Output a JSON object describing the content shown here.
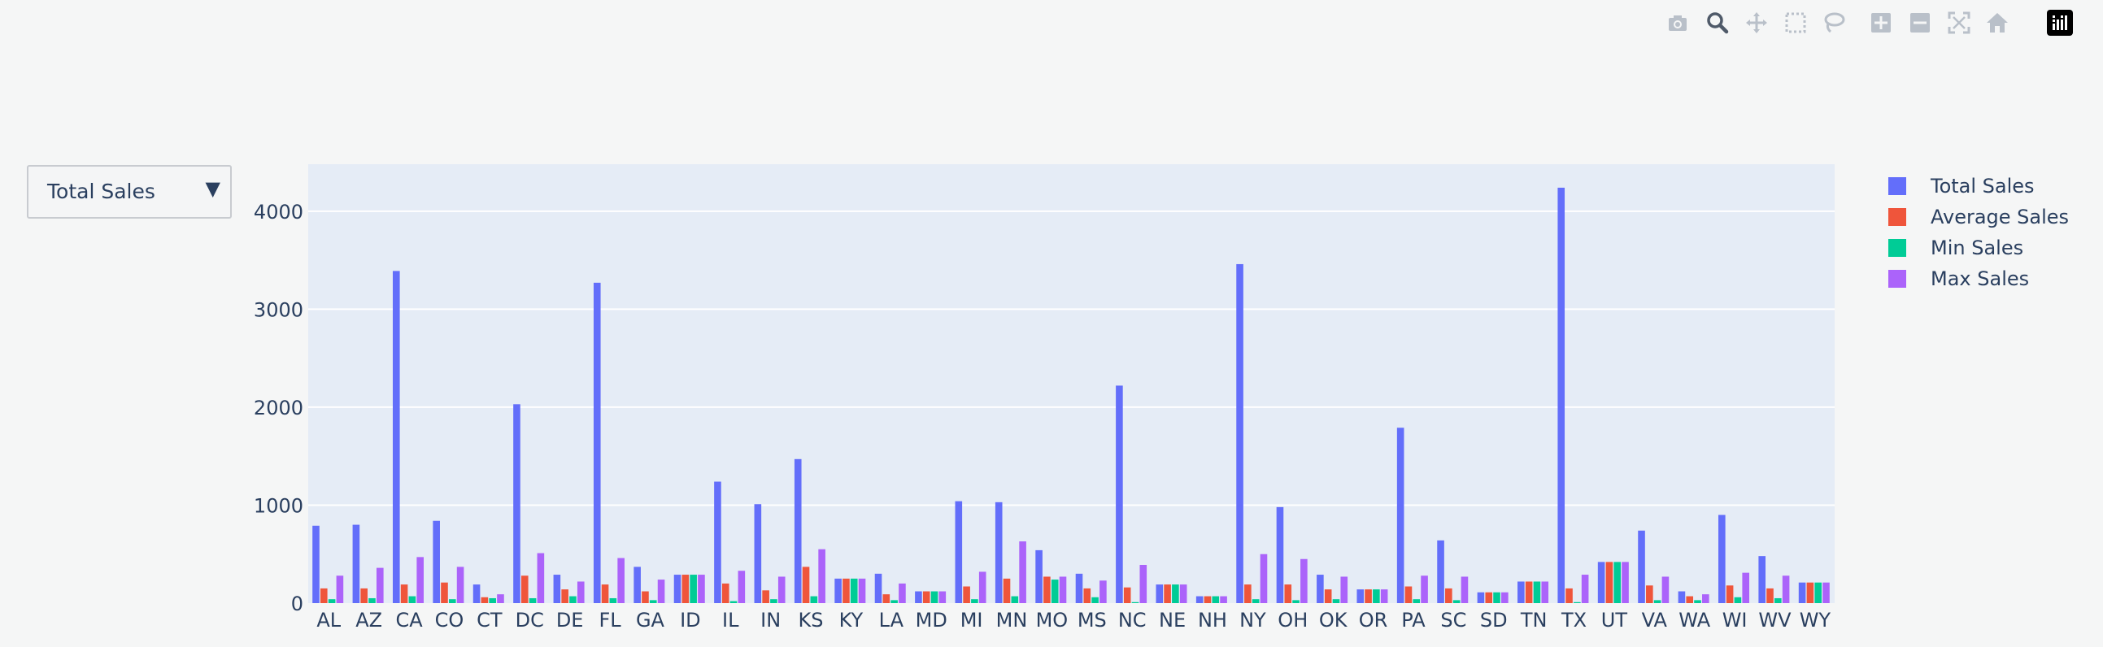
{
  "modebar": {
    "buttons": [
      {
        "name": "camera-icon"
      },
      {
        "name": "zoom-icon"
      },
      {
        "name": "pan-icon"
      },
      {
        "name": "box-select-icon"
      },
      {
        "name": "lasso-icon"
      },
      {
        "name": "zoom-in-icon"
      },
      {
        "name": "zoom-out-icon"
      },
      {
        "name": "autoscale-icon"
      },
      {
        "name": "home-icon"
      },
      {
        "name": "plotly-logo-icon"
      }
    ]
  },
  "dropdown": {
    "selected": "Total Sales",
    "arrow": "▼"
  },
  "colors": {
    "plot_bg": "#e5ecf6",
    "grid": "#ffffff",
    "text": "#2a3f5f",
    "total": "#636efa",
    "average": "#ef553b",
    "min": "#00cc96",
    "max": "#ab63fa"
  },
  "chart_data": {
    "type": "bar",
    "ylim": [
      0,
      4480
    ],
    "yticks": [
      0,
      1000,
      2000,
      3000,
      4000
    ],
    "grid": true,
    "legend_position": "top-right",
    "categories": [
      "AL",
      "AZ",
      "CA",
      "CO",
      "CT",
      "DC",
      "DE",
      "FL",
      "GA",
      "ID",
      "IL",
      "IN",
      "KS",
      "KY",
      "LA",
      "MD",
      "MI",
      "MN",
      "MO",
      "MS",
      "NC",
      "NE",
      "NH",
      "NY",
      "OH",
      "OK",
      "OR",
      "PA",
      "SC",
      "SD",
      "TN",
      "TX",
      "UT",
      "VA",
      "WA",
      "WI",
      "WV",
      "WY"
    ],
    "series": [
      {
        "name": "Total Sales",
        "color": "#636efa",
        "values": [
          790,
          800,
          3390,
          840,
          190,
          2030,
          290,
          3270,
          370,
          290,
          1240,
          1010,
          1470,
          250,
          300,
          120,
          1040,
          1030,
          540,
          300,
          2220,
          190,
          70,
          3460,
          980,
          290,
          140,
          1790,
          640,
          110,
          220,
          4240,
          420,
          740,
          120,
          900,
          480,
          210
        ]
      },
      {
        "name": "Average Sales",
        "color": "#ef553b",
        "values": [
          150,
          150,
          190,
          210,
          60,
          280,
          140,
          190,
          120,
          290,
          200,
          130,
          370,
          250,
          90,
          120,
          170,
          250,
          270,
          150,
          160,
          190,
          70,
          190,
          190,
          140,
          140,
          170,
          150,
          110,
          220,
          150,
          420,
          180,
          70,
          180,
          150,
          210
        ]
      },
      {
        "name": "Min Sales",
        "color": "#00cc96",
        "values": [
          40,
          50,
          70,
          40,
          50,
          50,
          70,
          50,
          30,
          290,
          20,
          40,
          70,
          250,
          30,
          120,
          40,
          70,
          240,
          60,
          10,
          190,
          70,
          40,
          30,
          40,
          140,
          40,
          30,
          110,
          220,
          10,
          420,
          30,
          30,
          60,
          50,
          210
        ]
      },
      {
        "name": "Max Sales",
        "color": "#ab63fa",
        "values": [
          280,
          360,
          470,
          370,
          90,
          510,
          220,
          460,
          240,
          290,
          330,
          270,
          550,
          250,
          200,
          120,
          320,
          630,
          270,
          230,
          390,
          190,
          70,
          500,
          450,
          270,
          140,
          280,
          270,
          110,
          220,
          290,
          420,
          270,
          90,
          310,
          280,
          210
        ]
      }
    ]
  }
}
